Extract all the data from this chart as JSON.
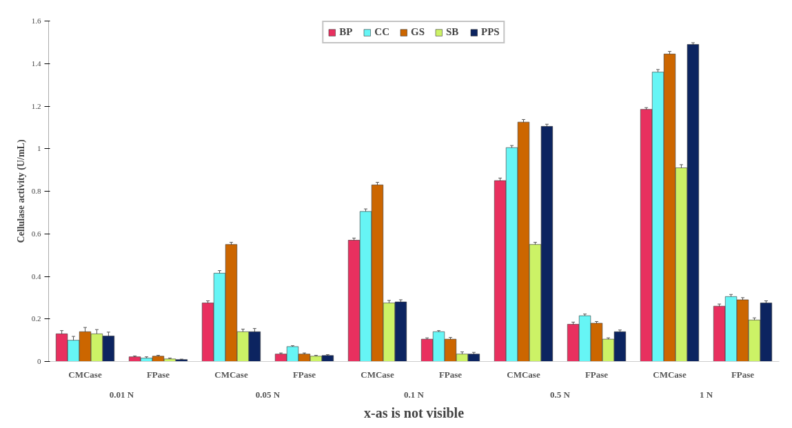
{
  "chart_data": {
    "type": "bar",
    "ylabel": "Cellulase activity (U/mL)",
    "xlabel": "x-as is not visible",
    "categories": [
      "CMCase",
      "FPase",
      "CMCase",
      "FPase",
      "CMCase",
      "FPase",
      "CMCase",
      "FPase",
      "CMCase",
      "FPase"
    ],
    "annotations": [
      "0.01 N",
      "0.05 N",
      "0.1 N",
      "0.5 N",
      "1 N"
    ],
    "series": [
      {
        "name": "BP",
        "color": "#e8305f",
        "values": [
          0.13,
          0.022,
          0.275,
          0.035,
          0.57,
          0.105,
          0.85,
          0.175,
          1.185,
          0.26
        ],
        "errors": [
          0.015,
          0.004,
          0.01,
          0.005,
          0.01,
          0.006,
          0.012,
          0.01,
          0.008,
          0.01
        ]
      },
      {
        "name": "CC",
        "color": "#66f5f5",
        "values": [
          0.1,
          0.016,
          0.415,
          0.07,
          0.705,
          0.14,
          1.005,
          0.215,
          1.36,
          0.305
        ],
        "errors": [
          0.018,
          0.006,
          0.012,
          0.004,
          0.012,
          0.005,
          0.01,
          0.008,
          0.012,
          0.01
        ]
      },
      {
        "name": "GS",
        "color": "#cc6600",
        "values": [
          0.14,
          0.025,
          0.55,
          0.035,
          0.83,
          0.105,
          1.125,
          0.18,
          1.445,
          0.29
        ],
        "errors": [
          0.02,
          0.004,
          0.01,
          0.005,
          0.012,
          0.008,
          0.012,
          0.008,
          0.012,
          0.01
        ]
      },
      {
        "name": "SB",
        "color": "#ccf266",
        "values": [
          0.13,
          0.012,
          0.14,
          0.025,
          0.275,
          0.035,
          0.55,
          0.105,
          0.91,
          0.195
        ],
        "errors": [
          0.02,
          0.004,
          0.012,
          0.004,
          0.012,
          0.01,
          0.01,
          0.006,
          0.015,
          0.01
        ]
      },
      {
        "name": "PPS",
        "color": "#0c2460",
        "values": [
          0.12,
          0.009,
          0.14,
          0.028,
          0.28,
          0.035,
          1.105,
          0.14,
          1.49,
          0.275
        ],
        "errors": [
          0.018,
          0.002,
          0.015,
          0.004,
          0.01,
          0.008,
          0.01,
          0.008,
          0.008,
          0.01
        ]
      }
    ],
    "ylim": [
      0,
      1.6
    ],
    "yticks": [
      0,
      0.2,
      0.4,
      0.6,
      0.8,
      1,
      1.2,
      1.4,
      1.6
    ],
    "grid": false,
    "legend": "top"
  }
}
